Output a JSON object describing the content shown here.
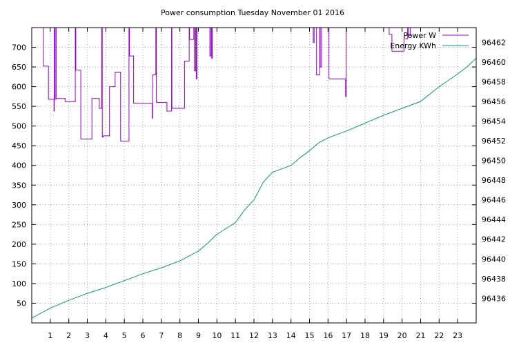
{
  "chart_data": {
    "type": "line",
    "title": "Power consumption Tuesday November 01 2016",
    "xlabel": "",
    "ylabel": "",
    "y2label": "",
    "xlim": [
      0,
      24
    ],
    "ylim": [
      0,
      750
    ],
    "y2lim": [
      96433.5,
      96463.5
    ],
    "x_ticks": [
      1,
      2,
      3,
      4,
      5,
      6,
      7,
      8,
      9,
      10,
      11,
      12,
      13,
      14,
      15,
      16,
      17,
      18,
      19,
      20,
      21,
      22,
      23
    ],
    "y_ticks": [
      50,
      100,
      150,
      200,
      250,
      300,
      350,
      400,
      450,
      500,
      550,
      600,
      650,
      700
    ],
    "y2_ticks": [
      96436,
      96438,
      96440,
      96442,
      96444,
      96446,
      96448,
      96450,
      96452,
      96454,
      96456,
      96458,
      96460,
      96462
    ],
    "grid": true,
    "legend_position": "top-right",
    "series": [
      {
        "name": "Power W",
        "axis": "left",
        "color": "#9400d3",
        "step": true,
        "points": [
          [
            0.6,
            750
          ],
          [
            0.63,
            652
          ],
          [
            0.9,
            568
          ],
          [
            1.2,
            538
          ],
          [
            1.22,
            750
          ],
          [
            1.25,
            568
          ],
          [
            1.3,
            750
          ],
          [
            1.32,
            570
          ],
          [
            1.8,
            562
          ],
          [
            2.35,
            750
          ],
          [
            2.38,
            642
          ],
          [
            2.65,
            467
          ],
          [
            3.25,
            570
          ],
          [
            3.65,
            545
          ],
          [
            3.78,
            750
          ],
          [
            3.81,
            472
          ],
          [
            3.85,
            475
          ],
          [
            4.2,
            600
          ],
          [
            4.5,
            637
          ],
          [
            4.8,
            462
          ],
          [
            5.25,
            750
          ],
          [
            5.28,
            678
          ],
          [
            5.5,
            558
          ],
          [
            6.5,
            520
          ],
          [
            6.52,
            630
          ],
          [
            6.7,
            750
          ],
          [
            6.73,
            560
          ],
          [
            7.3,
            538
          ],
          [
            7.55,
            750
          ],
          [
            7.57,
            545
          ],
          [
            8.25,
            665
          ],
          [
            8.5,
            750
          ],
          [
            8.52,
            720
          ],
          [
            8.75,
            750
          ],
          [
            8.78,
            640
          ],
          [
            8.85,
            750
          ],
          [
            8.88,
            620
          ],
          [
            8.92,
            750
          ],
          [
            9.62,
            678
          ],
          [
            9.68,
            750
          ],
          [
            9.72,
            672
          ],
          [
            9.75,
            750
          ],
          [
            15.2,
            712
          ],
          [
            15.25,
            750
          ],
          [
            15.38,
            630
          ],
          [
            15.55,
            750
          ],
          [
            15.58,
            650
          ],
          [
            15.65,
            750
          ],
          [
            16.05,
            620
          ],
          [
            16.95,
            575
          ],
          [
            16.98,
            750
          ],
          [
            19.3,
            733
          ],
          [
            19.45,
            690
          ],
          [
            20.1,
            722
          ],
          [
            20.3,
            750
          ],
          [
            20.35,
            730
          ],
          [
            20.45,
            750
          ]
        ]
      },
      {
        "name": "Energy KWh",
        "axis": "right",
        "color": "#009e73",
        "step": false,
        "points": [
          [
            0,
            96434.0
          ],
          [
            1,
            96435.0
          ],
          [
            2,
            96435.8
          ],
          [
            3,
            96436.5
          ],
          [
            4,
            96437.1
          ],
          [
            5,
            96437.8
          ],
          [
            6,
            96438.5
          ],
          [
            7,
            96439.1
          ],
          [
            8,
            96439.8
          ],
          [
            9,
            96440.8
          ],
          [
            9.5,
            96441.6
          ],
          [
            10,
            96442.5
          ],
          [
            11,
            96443.7
          ],
          [
            11.5,
            96445.0
          ],
          [
            12,
            96446.0
          ],
          [
            12.5,
            96447.8
          ],
          [
            13,
            96448.8
          ],
          [
            14,
            96449.5
          ],
          [
            14.5,
            96450.3
          ],
          [
            15,
            96451.0
          ],
          [
            15.5,
            96451.8
          ],
          [
            16,
            96452.3
          ],
          [
            17,
            96453.0
          ],
          [
            18,
            96453.8
          ],
          [
            19,
            96454.6
          ],
          [
            20,
            96455.3
          ],
          [
            21,
            96456.0
          ],
          [
            22,
            96457.5
          ],
          [
            23,
            96458.8
          ],
          [
            23.5,
            96459.5
          ],
          [
            24,
            96460.4
          ]
        ]
      }
    ]
  }
}
